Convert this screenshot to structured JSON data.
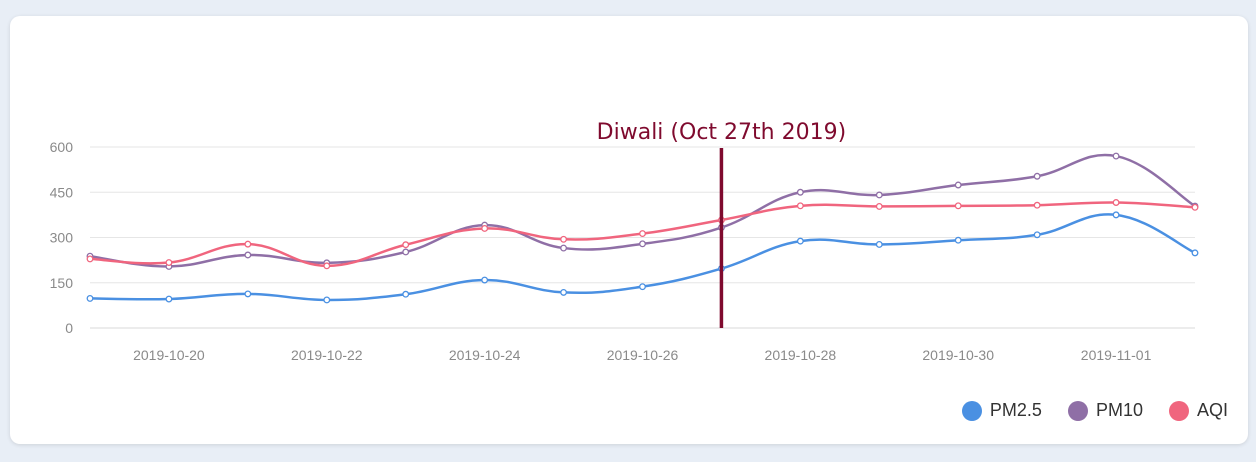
{
  "chart_data": {
    "type": "line",
    "title": "",
    "xlabel": "",
    "ylabel": "",
    "x": [
      "2019-10-19",
      "2019-10-20",
      "2019-10-21",
      "2019-10-22",
      "2019-10-23",
      "2019-10-24",
      "2019-10-25",
      "2019-10-26",
      "2019-10-27",
      "2019-10-28",
      "2019-10-29",
      "2019-10-30",
      "2019-10-31",
      "2019-11-01",
      "2019-11-02"
    ],
    "x_tick_labels": [
      "2019-10-20",
      "2019-10-22",
      "2019-10-24",
      "2019-10-26",
      "2019-10-28",
      "2019-10-30",
      "2019-11-01"
    ],
    "y_ticks": [
      0,
      150,
      300,
      450,
      600
    ],
    "ylim": [
      0,
      600
    ],
    "grid": true,
    "legend_position": "bottom-right",
    "series": [
      {
        "name": "PM2.5",
        "color": "#4a90e2",
        "values": [
          98,
          96,
          113,
          93,
          112,
          159,
          118,
          137,
          197,
          288,
          277,
          291,
          309,
          375,
          249
        ]
      },
      {
        "name": "PM10",
        "color": "#8f6fa6",
        "values": [
          238,
          204,
          242,
          216,
          252,
          341,
          265,
          279,
          333,
          450,
          441,
          474,
          503,
          570,
          404
        ]
      },
      {
        "name": "AQI",
        "color": "#f0657e",
        "values": [
          229,
          217,
          278,
          206,
          276,
          330,
          294,
          313,
          358,
          405,
          403,
          405,
          407,
          416,
          400
        ]
      }
    ],
    "annotation": {
      "label": "Diwali (Oct 27th 2019)",
      "x": "2019-10-27",
      "color": "#7f0a2e"
    }
  }
}
